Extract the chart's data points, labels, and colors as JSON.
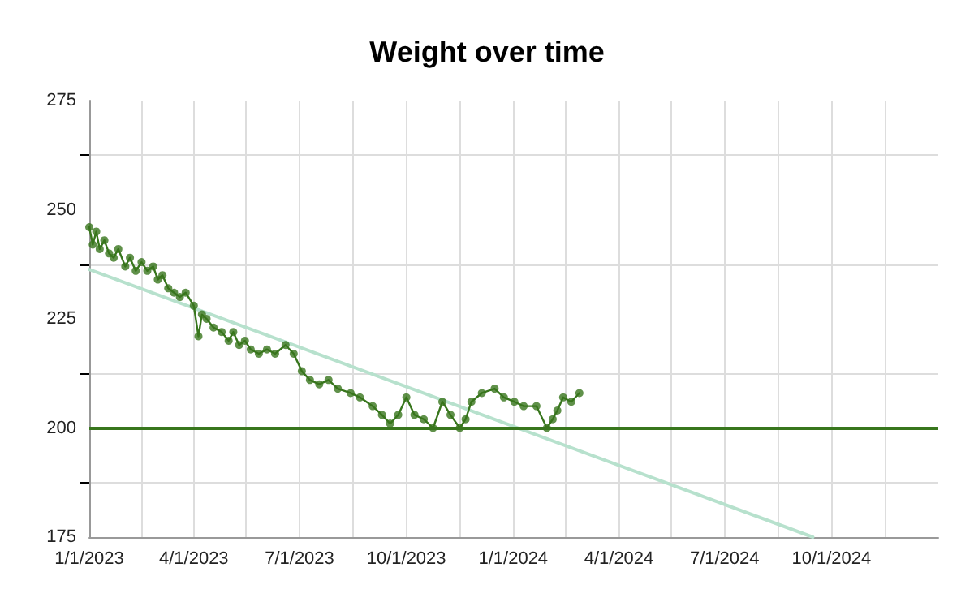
{
  "chart_data": {
    "type": "line",
    "title": "Weight over time",
    "x": [
      "2023-01-01",
      "2023-01-04",
      "2023-01-07",
      "2023-01-10",
      "2023-01-14",
      "2023-01-18",
      "2023-01-22",
      "2023-01-26",
      "2023-02-01",
      "2023-02-05",
      "2023-02-10",
      "2023-02-15",
      "2023-02-20",
      "2023-02-25",
      "2023-03-01",
      "2023-03-05",
      "2023-03-10",
      "2023-03-15",
      "2023-03-20",
      "2023-03-25",
      "2023-04-01",
      "2023-04-05",
      "2023-04-08",
      "2023-04-12",
      "2023-04-18",
      "2023-04-25",
      "2023-05-01",
      "2023-05-05",
      "2023-05-10",
      "2023-05-15",
      "2023-05-20",
      "2023-05-27",
      "2023-06-03",
      "2023-06-10",
      "2023-06-19",
      "2023-06-26",
      "2023-07-03",
      "2023-07-10",
      "2023-07-18",
      "2023-07-26",
      "2023-08-03",
      "2023-08-14",
      "2023-08-22",
      "2023-09-02",
      "2023-09-10",
      "2023-09-17",
      "2023-09-24",
      "2023-10-01",
      "2023-10-08",
      "2023-10-16",
      "2023-10-24",
      "2023-11-01",
      "2023-11-08",
      "2023-11-16",
      "2023-11-21",
      "2023-11-26",
      "2023-12-05",
      "2023-12-16",
      "2023-12-24",
      "2024-01-02",
      "2024-01-10",
      "2024-01-21",
      "2024-01-30",
      "2024-02-04",
      "2024-02-08",
      "2024-02-13",
      "2024-02-20",
      "2024-02-27"
    ],
    "series": [
      {
        "marker": "circle",
        "color": "#38761d",
        "values": [
          246,
          242,
          245,
          241,
          243,
          240,
          239,
          241,
          237,
          239,
          236,
          238,
          236,
          237,
          234,
          235,
          232,
          231,
          230,
          231,
          228,
          221,
          226,
          225,
          223,
          222,
          220,
          222,
          219,
          220,
          218,
          217,
          218,
          217,
          219,
          217,
          213,
          211,
          210,
          211,
          209,
          208,
          207,
          205,
          203,
          201,
          203,
          207,
          203,
          202,
          200,
          206,
          203,
          200,
          202,
          206,
          208,
          209,
          207,
          206,
          205,
          205,
          200,
          202,
          204,
          207,
          206,
          208
        ]
      },
      {
        "marker": "none",
        "color": "#b7e1cd",
        "x": [
          "2023-01-01",
          "2024-09-15"
        ],
        "values": [
          236.3,
          175
        ]
      }
    ],
    "ref_lines": [
      {
        "axis": "y",
        "value": 200,
        "color": "#38761d"
      }
    ],
    "xlim": [
      "2023-01-01",
      "2025-01-01"
    ],
    "xticks": [
      {
        "value": "2023-01-01",
        "label": "1/1/2023"
      },
      {
        "value": "2023-02-15",
        "label": null
      },
      {
        "value": "2023-04-01",
        "label": "4/1/2023"
      },
      {
        "value": "2023-05-16",
        "label": null
      },
      {
        "value": "2023-07-01",
        "label": "7/1/2023"
      },
      {
        "value": "2023-08-16",
        "label": null
      },
      {
        "value": "2023-10-01",
        "label": "10/1/2023"
      },
      {
        "value": "2023-11-16",
        "label": null
      },
      {
        "value": "2024-01-01",
        "label": "1/1/2024"
      },
      {
        "value": "2024-02-15",
        "label": null
      },
      {
        "value": "2024-04-01",
        "label": "4/1/2024"
      },
      {
        "value": "2024-05-16",
        "label": null
      },
      {
        "value": "2024-07-01",
        "label": "7/1/2024"
      },
      {
        "value": "2024-08-16",
        "label": null
      },
      {
        "value": "2024-10-01",
        "label": "10/1/2024"
      },
      {
        "value": "2024-11-16",
        "label": null
      }
    ],
    "ylim": [
      175,
      275
    ],
    "yticks": [
      175,
      {
        "value": 187.5,
        "label": null
      },
      200,
      {
        "value": 212.5,
        "label": null
      },
      225,
      {
        "value": 237.5,
        "label": null
      },
      250,
      {
        "value": 262.5,
        "label": null
      },
      275
    ],
    "grid": true,
    "line_style": "solid"
  }
}
